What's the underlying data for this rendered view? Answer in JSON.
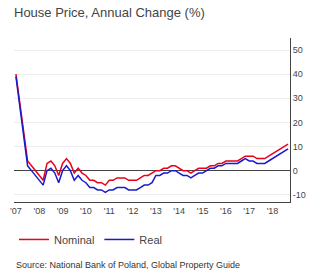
{
  "chart_data": {
    "type": "line",
    "title": "House Price, Annual Change (%)",
    "annotations": [
      "Source: National Bank of Poland, Global Property Guide"
    ],
    "categories": [
      "'07",
      null,
      null,
      null,
      null,
      null,
      "'08",
      null,
      null,
      null,
      null,
      null,
      "'09",
      null,
      null,
      null,
      null,
      null,
      "'10",
      null,
      null,
      null,
      null,
      null,
      "'11",
      null,
      null,
      null,
      null,
      null,
      "'12",
      null,
      null,
      null,
      null,
      null,
      "'13",
      null,
      null,
      null,
      null,
      null,
      "'14",
      null,
      null,
      null,
      null,
      null,
      "'15",
      null,
      null,
      null,
      null,
      null,
      "'16",
      null,
      null,
      null,
      null,
      null,
      "'17",
      null,
      null,
      null,
      null,
      null,
      "'18",
      null,
      null,
      null,
      null
    ],
    "series": [
      {
        "name": "Nominal",
        "color": "#e8001c",
        "values": [
          40,
          28,
          15,
          4,
          2,
          0,
          -2,
          -4,
          3,
          4,
          2,
          -2,
          3,
          5,
          3,
          -1,
          1,
          -1,
          -2,
          -4,
          -4,
          -5,
          -5,
          -6,
          -4,
          -4,
          -3,
          -3,
          -3,
          -4,
          -4,
          -4,
          -3,
          -2,
          -2,
          -1,
          0,
          0,
          1,
          1,
          2,
          2,
          1,
          0,
          0,
          -1,
          0,
          1,
          1,
          1,
          2,
          2,
          3,
          3,
          4,
          4,
          4,
          4,
          5,
          6,
          6,
          6,
          5,
          5,
          5,
          6,
          7,
          8,
          9,
          10,
          11
        ]
      },
      {
        "name": "Real",
        "color": "#1a1acd",
        "values": [
          39,
          27,
          13,
          2,
          0,
          -2,
          -4,
          -6,
          0,
          1,
          -1,
          -5,
          0,
          2,
          0,
          -4,
          -2,
          -4,
          -5,
          -7,
          -7,
          -8,
          -8,
          -9,
          -8,
          -8,
          -7,
          -7,
          -7,
          -8,
          -8,
          -8,
          -7,
          -6,
          -6,
          -5,
          -2,
          -2,
          -1,
          -1,
          0,
          0,
          -1,
          -2,
          -2,
          -3,
          -2,
          -1,
          -1,
          0,
          1,
          1,
          2,
          2,
          3,
          3,
          3,
          3,
          4,
          5,
          4,
          4,
          3,
          3,
          3,
          4,
          5,
          6,
          7,
          8,
          9
        ]
      }
    ],
    "ylim": [
      -13,
      55
    ],
    "yticks": [
      -10,
      0,
      10,
      20,
      30,
      40,
      50
    ],
    "grid": true,
    "legend": "lower left"
  }
}
